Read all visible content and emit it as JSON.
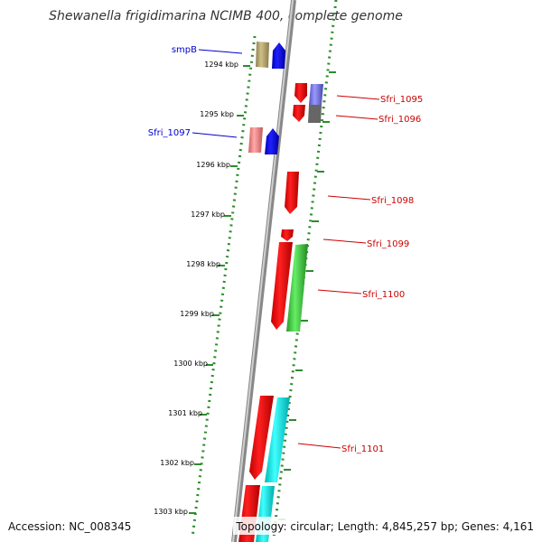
{
  "title": "Shewanella frigidimarina NCIMB 400, complete genome",
  "footer": {
    "accession": "Accession: NC_008345",
    "topology": "Topology: circular; Length: 4,845,257 bp; Genes: 4,161"
  },
  "ticks": [
    "1294 kbp",
    "1295 kbp",
    "1296 kbp",
    "1297 kbp",
    "1298 kbp",
    "1299 kbp",
    "1300 kbp",
    "1301 kbp",
    "1302 kbp",
    "1303 kbp"
  ],
  "gene_labels": [
    {
      "id": "smpB",
      "text": "smpB",
      "color": "#0000cc"
    },
    {
      "id": "sfri-1097",
      "text": "Sfri_1097",
      "color": "#0000cc"
    },
    {
      "id": "sfri-1095",
      "text": "Sfri_1095",
      "color": "#cc0000"
    },
    {
      "id": "sfri-1096",
      "text": "Sfri_1096",
      "color": "#cc0000"
    },
    {
      "id": "sfri-1098",
      "text": "Sfri_1098",
      "color": "#cc0000"
    },
    {
      "id": "sfri-1099",
      "text": "Sfri_1099",
      "color": "#cc0000"
    },
    {
      "id": "sfri-1100",
      "text": "Sfri_1100",
      "color": "#cc0000"
    },
    {
      "id": "sfri-1101",
      "text": "Sfri_1101",
      "color": "#cc0000"
    }
  ],
  "colors": {
    "backbone": "#8c8c8c",
    "dots": "#2e8b2e",
    "red": "#ee0000",
    "blue": "#0000ee",
    "green": "#44cc44",
    "cyan": "#00eeee",
    "olive": "#b5a665",
    "pink": "#f08080",
    "purple": "#7777dd"
  }
}
